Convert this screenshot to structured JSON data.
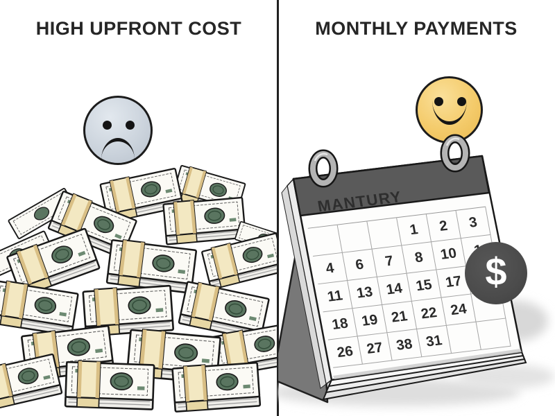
{
  "left_panel": {
    "title": "HIGH UPFRONT COST",
    "mood_icon": "sad-face",
    "illustration": "pile-of-banded-dollar-bundles"
  },
  "right_panel": {
    "title": "MONTHLY PAYMENTS",
    "mood_icon": "smiley-face",
    "calendar": {
      "month_label": "MANTURY",
      "badge_symbol": "$",
      "rows": [
        [
          "",
          "",
          "",
          "1",
          "2",
          "3"
        ],
        [
          "4",
          "6",
          "7",
          "8",
          "10",
          "1"
        ],
        [
          "11",
          "13",
          "14",
          "15",
          "17",
          ""
        ],
        [
          "18",
          "19",
          "21",
          "22",
          "24",
          ""
        ],
        [
          "26",
          "27",
          "38",
          "31",
          "",
          ""
        ]
      ]
    }
  },
  "colors": {
    "divider": "#212121",
    "title_text": "#262626",
    "sad_face_fill": "#ccd4dd",
    "happy_face_fill": "#f4cb6b",
    "calendar_header_band": "#5a5a5a",
    "calendar_stand": "#787878",
    "dollar_badge": "#4b4b4b",
    "money_band_cream": "#f3e8c2",
    "bill_portrait_green": "#5a7560"
  }
}
